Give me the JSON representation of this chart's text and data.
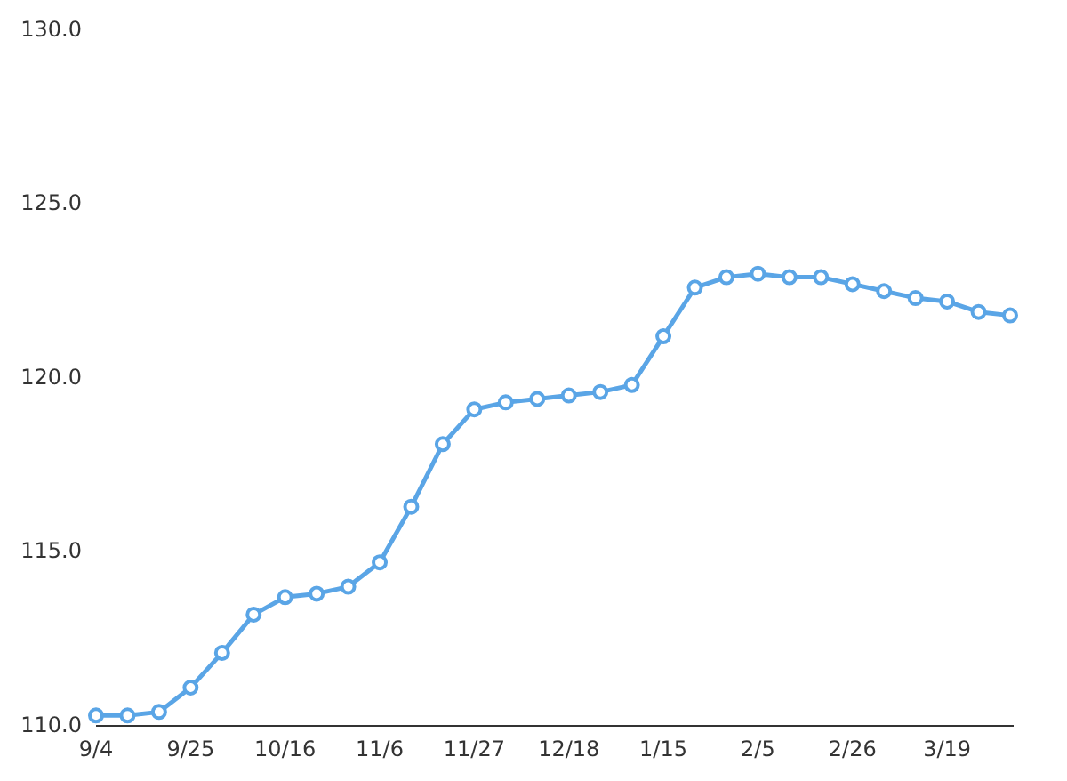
{
  "chart_data": {
    "type": "line",
    "categories": [
      "9/4",
      null,
      null,
      "9/25",
      null,
      null,
      "10/16",
      null,
      null,
      "11/6",
      null,
      null,
      "11/27",
      null,
      null,
      "12/18",
      null,
      null,
      "1/15",
      null,
      null,
      "2/5",
      null,
      null,
      "2/26",
      null,
      null,
      "3/19",
      null,
      null
    ],
    "series": [
      {
        "color": "#5aa5e6",
        "values": [
          110.3,
          110.3,
          110.4,
          111.1,
          112.1,
          113.2,
          113.7,
          113.8,
          114.0,
          114.7,
          116.3,
          118.1,
          119.1,
          119.3,
          119.4,
          119.5,
          119.6,
          119.8,
          121.2,
          122.6,
          122.9,
          123.0,
          122.9,
          122.9,
          122.7,
          122.5,
          122.3,
          122.2,
          121.9,
          121.8
        ]
      }
    ],
    "ylim": [
      110,
      130
    ],
    "yticks": [
      {
        "value": 110,
        "label": "110.0"
      },
      {
        "value": 115,
        "label": "115.0"
      },
      {
        "value": 120,
        "label": "120.0"
      },
      {
        "value": 125,
        "label": "125.0"
      },
      {
        "value": 130,
        "label": "130.0"
      }
    ],
    "marker": "circle",
    "line_style": "solid"
  }
}
